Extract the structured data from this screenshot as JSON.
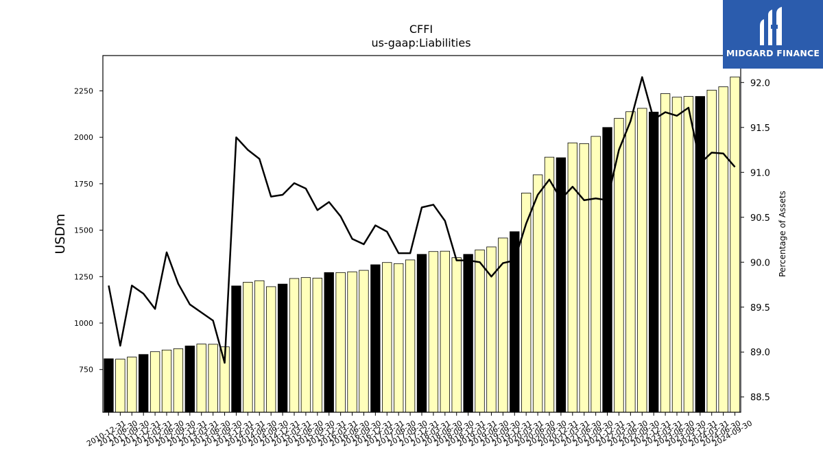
{
  "logo": {
    "text": "MIDGARD FINANCE",
    "background": "#2b5cad"
  },
  "chart_data": {
    "type": "bar",
    "title": "CFFI",
    "subtitle": "us-gaap:Liabilities",
    "ylabel": "USDm",
    "y2label": "Percentage of Assets",
    "ylim": [
      520,
      2440
    ],
    "y2lim": [
      88.33,
      92.3
    ],
    "yticks": [
      750,
      1000,
      1250,
      1500,
      1750,
      2000,
      2250
    ],
    "y2ticks": [
      "88.5",
      "89.0",
      "89.5",
      "90.0",
      "90.5",
      "91.0",
      "91.5",
      "92.0"
    ],
    "categories": [
      "2010-12-31",
      "2011-06-30",
      "2011-09-30",
      "2011-12-31",
      "2012-03-31",
      "2012-06-30",
      "2012-09-30",
      "2012-12-31",
      "2013-03-31",
      "2013-06-30",
      "2013-09-30",
      "2013-12-31",
      "2014-03-31",
      "2014-06-30",
      "2014-09-30",
      "2014-12-31",
      "2015-03-31",
      "2015-06-30",
      "2015-09-30",
      "2015-12-31",
      "2016-03-31",
      "2016-06-30",
      "2016-09-30",
      "2016-12-31",
      "2017-03-31",
      "2017-06-30",
      "2017-09-30",
      "2017-12-31",
      "2018-03-31",
      "2018-06-30",
      "2018-09-30",
      "2018-12-31",
      "2019-03-31",
      "2019-06-30",
      "2019-09-30",
      "2019-12-31",
      "2020-03-31",
      "2020-06-30",
      "2020-09-30",
      "2020-12-31",
      "2021-03-31",
      "2021-06-30",
      "2021-09-30",
      "2021-12-31",
      "2022-03-31",
      "2022-06-30",
      "2022-09-30",
      "2022-12-31",
      "2023-03-31",
      "2023-06-30",
      "2023-09-30",
      "2023-12-31",
      "2024-03-31",
      "2024-06-30",
      "2024-09-30"
    ],
    "series": [
      {
        "values": [
          808,
          806,
          817,
          831,
          846,
          855,
          862,
          877,
          887,
          886,
          872,
          1200,
          1220,
          1228,
          1196,
          1210,
          1240,
          1245,
          1242,
          1272,
          1272,
          1276,
          1284,
          1314,
          1326,
          1320,
          1340,
          1370,
          1385,
          1387,
          1352,
          1370,
          1394,
          1410,
          1458,
          1492,
          1700,
          1798,
          1893,
          1890,
          1970,
          1966,
          2005,
          2053,
          2102,
          2138,
          2156,
          2136,
          2235,
          2216,
          2220,
          2220,
          2254,
          2272,
          2325
        ]
      },
      {
        "values": [
          89.74,
          89.07,
          89.74,
          89.65,
          89.48,
          90.11,
          89.76,
          89.53,
          89.44,
          89.35,
          88.88,
          91.39,
          91.25,
          91.15,
          90.73,
          90.75,
          90.88,
          90.82,
          90.58,
          90.67,
          90.51,
          90.26,
          90.2,
          90.41,
          90.34,
          90.1,
          90.1,
          90.61,
          90.64,
          90.46,
          90.02,
          90.02,
          90.0,
          89.84,
          89.99,
          90.02,
          90.43,
          90.75,
          90.92,
          90.7,
          90.84,
          90.69,
          90.71,
          90.69,
          91.25,
          91.57,
          92.06,
          91.59,
          91.67,
          91.63,
          91.72,
          91.1,
          91.22,
          91.21,
          91.06
        ]
      }
    ],
    "year_end_color": "#000000",
    "bar_color": "#ffffbb",
    "line_color": "#000000"
  }
}
